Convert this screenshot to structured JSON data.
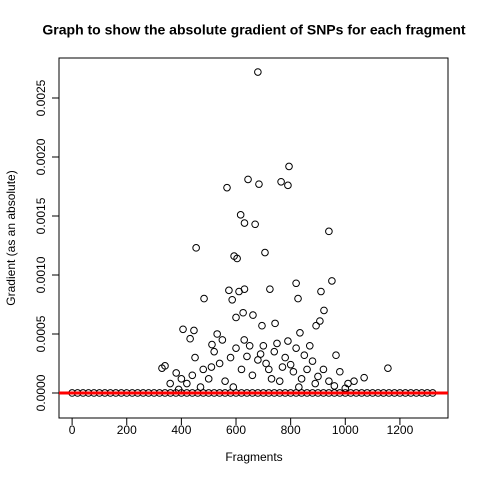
{
  "chart_data": {
    "type": "scatter",
    "title": "Graph to show the absolute gradient of SNPs for each fragment",
    "x_label": "Fragments",
    "y_label": "Gradient (as an absolute)",
    "xlim": [
      -48,
      1376
    ],
    "ylim": [
      -0.000212,
      0.002839
    ],
    "xticks": [
      0,
      200,
      400,
      600,
      800,
      1000,
      1200
    ],
    "yticks": [
      {
        "value": 0,
        "label": "0.0000"
      },
      0.0005,
      {
        "value": 0.001,
        "label": "0.0010"
      },
      0.0015,
      {
        "value": 0.002,
        "label": "0.0020"
      },
      0.0025
    ],
    "color": "#000000",
    "hline": 0,
    "hline_color": "#ff0000",
    "x": [
      0,
      20,
      40,
      60,
      80,
      100,
      120,
      140,
      160,
      180,
      200,
      220,
      240,
      260,
      280,
      300,
      320,
      340,
      360,
      380,
      400,
      420,
      440,
      460,
      480,
      500,
      520,
      540,
      560,
      580,
      600,
      620,
      640,
      660,
      680,
      700,
      720,
      740,
      760,
      780,
      800,
      820,
      840,
      860,
      880,
      900,
      920,
      940,
      960,
      980,
      1000,
      1020,
      1040,
      1060,
      1080,
      1100,
      1120,
      1140,
      1160,
      1180,
      1200,
      1220,
      1240,
      1260,
      1280,
      1300,
      1320,
      680,
      794,
      567,
      644,
      765,
      684,
      790,
      617,
      631,
      670,
      940,
      454,
      706,
      593,
      604,
      951,
      820,
      574,
      631,
      611,
      724,
      911,
      483,
      827,
      586,
      922,
      626,
      662,
      600,
      406,
      446,
      531,
      695,
      743,
      893,
      907,
      834,
      432,
      512,
      966,
      329,
      340,
      1156,
      381,
      359,
      1069,
      1032,
      1010,
      450,
      480,
      520,
      540,
      560,
      580,
      600,
      620,
      640,
      660,
      680,
      700,
      720,
      740,
      760,
      780,
      800,
      820,
      840,
      860,
      880,
      900,
      920,
      940,
      960,
      500,
      420,
      440,
      470,
      510,
      550,
      590,
      630,
      650,
      690,
      710,
      730,
      750,
      770,
      790,
      810,
      830,
      850,
      870,
      890,
      980,
      1000,
      400,
      390
    ],
    "y": [
      0,
      0,
      0,
      0,
      0,
      0,
      0,
      0,
      0,
      0,
      0,
      0,
      0,
      0,
      0,
      0,
      0,
      0,
      0,
      0,
      0,
      0,
      0,
      0,
      0,
      0,
      0,
      0,
      0,
      0,
      0,
      0,
      0,
      0,
      0,
      0,
      0,
      0,
      0,
      0,
      0,
      0,
      0,
      0,
      0,
      0,
      0,
      0,
      0,
      0,
      0,
      0,
      0,
      0,
      0,
      0,
      0,
      0,
      0,
      0,
      0,
      0,
      0,
      0,
      0,
      0,
      0,
      0.00272,
      0.00192,
      0.00174,
      0.00181,
      0.00179,
      0.00177,
      0.00176,
      0.00151,
      0.00144,
      0.00143,
      0.00137,
      0.00123,
      0.00119,
      0.00116,
      0.00114,
      0.00095,
      0.00093,
      0.00087,
      0.00088,
      0.00086,
      0.00088,
      0.00086,
      0.0008,
      0.0008,
      0.00079,
      0.0007,
      0.00068,
      0.00066,
      0.00064,
      0.00054,
      0.00053,
      0.0005,
      0.00057,
      0.00059,
      0.00057,
      0.00061,
      0.00051,
      0.00046,
      0.00041,
      0.00032,
      0.00021,
      0.00023,
      0.00021,
      0.00017,
      8e-05,
      0.00013,
      0.0001,
      8e-05,
      0.0003,
      0.0002,
      0.00035,
      0.00025,
      0.0001,
      0.0003,
      0.00038,
      0.0002,
      0.00031,
      0.00015,
      0.00028,
      0.0004,
      0.0002,
      0.00035,
      0.0001,
      0.0003,
      0.00024,
      0.00038,
      0.00012,
      0.0002,
      0.00027,
      0.00014,
      0.0002,
      0.0001,
      6e-05,
      0.00012,
      8e-05,
      0.00015,
      5e-05,
      0.00022,
      0.00045,
      5e-05,
      0.00045,
      0.0004,
      0.00033,
      0.00025,
      0.00012,
      0.00042,
      0.00022,
      0.00044,
      0.00018,
      5e-05,
      0.00032,
      0.0004,
      8e-05,
      0.00018,
      4e-05,
      0.00012,
      3e-05
    ]
  }
}
